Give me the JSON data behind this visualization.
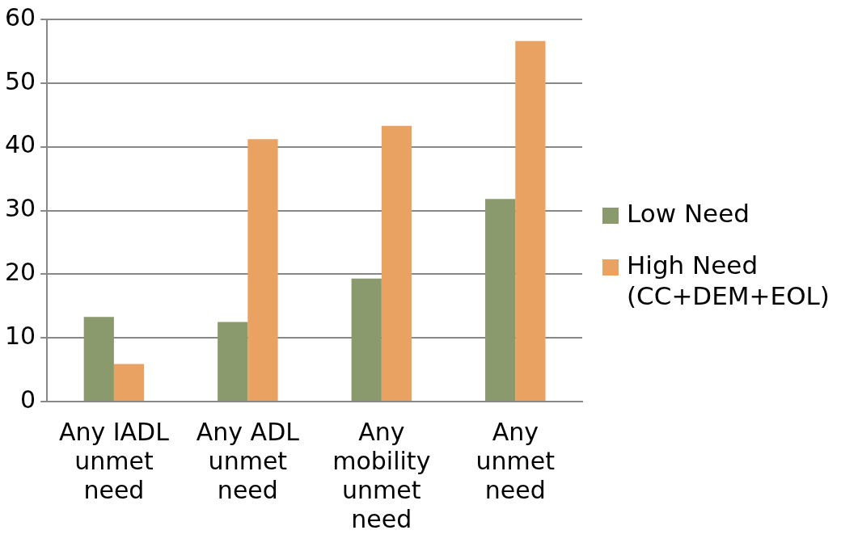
{
  "chart_data": {
    "type": "bar",
    "categories": [
      "Any IADL unmet need",
      "Any ADL unmet need",
      "Any mobility unmet need",
      "Any unmet need"
    ],
    "series": [
      {
        "name": "Low Need",
        "color": "#8a9a6c",
        "values": [
          13.3,
          12.5,
          19.3,
          31.8
        ]
      },
      {
        "name": "High Need (CC+DEM+EOL)",
        "color": "#e9a262",
        "values": [
          5.9,
          41.2,
          43.3,
          56.6
        ]
      }
    ],
    "ylim": [
      0,
      60
    ],
    "yticks": [
      0,
      10,
      20,
      30,
      40,
      50,
      60
    ],
    "grid": "y",
    "legend": "right"
  }
}
